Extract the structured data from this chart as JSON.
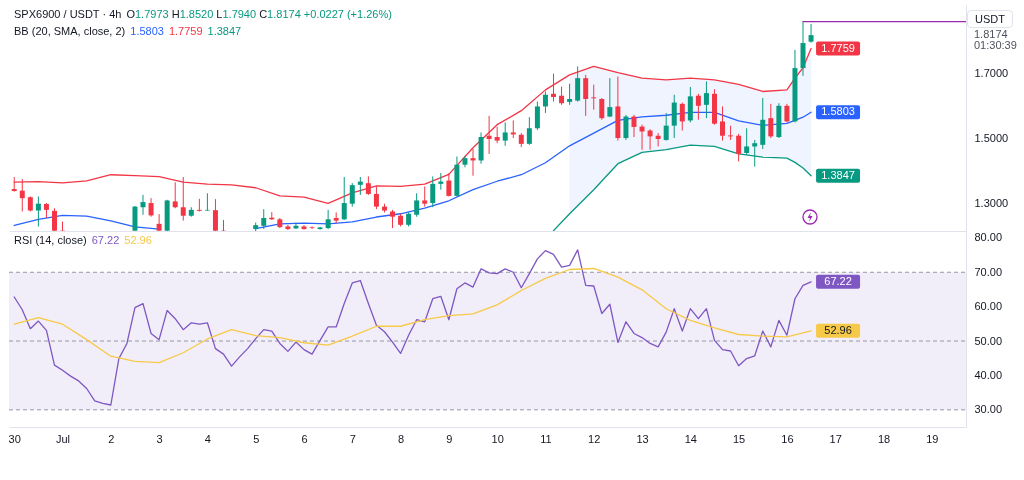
{
  "chart_data": [
    {
      "type": "candlestick",
      "title": "SPX6900 / USDT · 4h",
      "subtitle": "O1.7973 H1.8520 L1.7940 C1.8174 +0.0227 (+1.26%)",
      "legend_title": "BB (20, SMA, close, 2)",
      "ylabel": "USDT",
      "legend": "top left",
      "tick_labels": "y",
      "x": [
        "--06-30T00:00",
        "--06-30T04:00",
        "--06-30T08:00",
        "--06-30T12:00",
        "--06-30T16:00",
        "--06-30T20:00",
        "--07-01T00:00",
        "--07-02T12:00",
        "--07-02T16:00",
        "--07-02T20:00",
        "--07-03T00:00",
        "--07-03T04:00",
        "--07-03T08:00",
        "--07-03T12:00",
        "--07-03T16:00",
        "--07-03T20:00",
        "--07-04T00:00",
        "--07-04T04:00",
        "--07-04T08:00",
        "--07-05T00:00",
        "--07-05T04:00",
        "--07-05T08:00",
        "--07-05T12:00",
        "--07-05T16:00",
        "--07-05T20:00",
        "--07-06T00:00",
        "--07-06T04:00",
        "--07-06T08:00",
        "--07-06T12:00",
        "--07-06T16:00",
        "--07-06T20:00",
        "--07-07T00:00",
        "--07-07T04:00",
        "--07-07T08:00",
        "--07-07T12:00",
        "--07-07T16:00",
        "--07-07T20:00",
        "--07-08T00:00",
        "--07-08T04:00",
        "--07-08T08:00",
        "--07-08T12:00",
        "--07-08T16:00",
        "--07-08T20:00",
        "--07-09T00:00",
        "--07-09T04:00",
        "--07-09T08:00",
        "--07-09T12:00",
        "--07-09T16:00",
        "--07-09T20:00",
        "--07-10T00:00",
        "--07-10T04:00",
        "--07-10T08:00",
        "--07-10T12:00",
        "--07-10T16:00",
        "--07-10T20:00",
        "--07-11T00:00",
        "--07-11T04:00",
        "--07-11T08:00",
        "--07-11T12:00",
        "--07-11T16:00",
        "--07-11T20:00",
        "--07-12T00:00",
        "--07-12T04:00",
        "--07-12T08:00",
        "--07-12T12:00",
        "--07-12T16:00",
        "--07-12T20:00",
        "--07-13T00:00",
        "--07-13T04:00",
        "--07-13T08:00",
        "--07-13T12:00",
        "--07-13T16:00",
        "--07-13T20:00",
        "--07-14T00:00",
        "--07-14T04:00",
        "--07-14T08:00",
        "--07-14T12:00",
        "--07-14T16:00",
        "--07-14T20:00",
        "--07-15T00:00",
        "--07-15T04:00",
        "--07-15T08:00",
        "--07-15T12:00",
        "--07-15T16:00",
        "--07-15T20:00",
        "--07-16T00:00",
        "--07-16T04:00",
        "--07-16T08:00",
        "--07-16T12:00"
      ],
      "ohlc": [
        [
          1.344,
          1.381,
          1.336,
          1.338
        ],
        [
          1.339,
          1.375,
          1.275,
          1.316
        ],
        [
          1.319,
          1.321,
          1.275,
          1.278
        ],
        [
          1.278,
          1.321,
          1.229,
          1.299
        ],
        [
          1.298,
          1.301,
          1.255,
          1.28
        ],
        [
          1.277,
          1.285,
          1.215,
          1.216
        ],
        [
          1.217,
          1.244,
          1.215,
          1.216
        ],
        [
          1.216,
          1.292,
          1.215,
          1.29
        ],
        [
          1.288,
          1.326,
          1.265,
          1.304
        ],
        [
          1.301,
          1.316,
          1.259,
          1.263
        ],
        [
          1.237,
          1.267,
          1.215,
          1.216
        ],
        [
          1.216,
          1.311,
          1.215,
          1.309
        ],
        [
          1.306,
          1.365,
          1.285,
          1.288
        ],
        [
          1.288,
          1.381,
          1.247,
          1.262
        ],
        [
          1.262,
          1.288,
          1.259,
          1.28
        ],
        [
          1.28,
          1.314,
          1.275,
          1.277
        ],
        [
          1.278,
          1.331,
          1.277,
          1.28
        ],
        [
          1.279,
          1.313,
          1.215,
          1.216
        ],
        [
          1.217,
          1.249,
          1.215,
          1.216
        ],
        [
          1.221,
          1.241,
          1.215,
          1.233
        ],
        [
          1.231,
          1.282,
          1.221,
          1.255
        ],
        [
          1.256,
          1.273,
          1.249,
          1.251
        ],
        [
          1.251,
          1.255,
          1.224,
          1.227
        ],
        [
          1.229,
          1.234,
          1.218,
          1.221
        ],
        [
          1.223,
          1.241,
          1.221,
          1.231
        ],
        [
          1.229,
          1.233,
          1.219,
          1.221
        ],
        [
          1.227,
          1.229,
          1.221,
          1.225
        ],
        [
          1.221,
          1.228,
          1.219,
          1.226
        ],
        [
          1.224,
          1.28,
          1.221,
          1.251
        ],
        [
          1.255,
          1.272,
          1.239,
          1.247
        ],
        [
          1.251,
          1.381,
          1.249,
          1.301
        ],
        [
          1.299,
          1.362,
          1.29,
          1.356
        ],
        [
          1.357,
          1.381,
          1.326,
          1.367
        ],
        [
          1.362,
          1.383,
          1.326,
          1.329
        ],
        [
          1.329,
          1.352,
          1.282,
          1.29
        ],
        [
          1.29,
          1.299,
          1.272,
          1.278
        ],
        [
          1.275,
          1.28,
          1.224,
          1.259
        ],
        [
          1.262,
          1.268,
          1.229,
          1.234
        ],
        [
          1.234,
          1.272,
          1.229,
          1.268
        ],
        [
          1.265,
          1.331,
          1.259,
          1.309
        ],
        [
          1.309,
          1.352,
          1.29,
          1.299
        ],
        [
          1.301,
          1.383,
          1.288,
          1.36
        ],
        [
          1.36,
          1.393,
          1.342,
          1.367
        ],
        [
          1.37,
          1.393,
          1.321,
          1.323
        ],
        [
          1.323,
          1.444,
          1.321,
          1.419
        ],
        [
          1.419,
          1.446,
          1.411,
          1.439
        ],
        [
          1.439,
          1.467,
          1.385,
          1.432
        ],
        [
          1.432,
          1.518,
          1.422,
          1.504
        ],
        [
          1.508,
          1.569,
          1.452,
          1.498
        ],
        [
          1.504,
          1.535,
          1.485,
          1.493
        ],
        [
          1.493,
          1.549,
          1.477,
          1.518
        ],
        [
          1.518,
          1.555,
          1.501,
          1.512
        ],
        [
          1.511,
          1.516,
          1.473,
          1.483
        ],
        [
          1.483,
          1.565,
          1.48,
          1.531
        ],
        [
          1.531,
          1.613,
          1.526,
          1.598
        ],
        [
          1.598,
          1.644,
          1.578,
          1.634
        ],
        [
          1.637,
          1.699,
          1.613,
          1.627
        ],
        [
          1.631,
          1.659,
          1.603,
          1.608
        ],
        [
          1.612,
          1.668,
          1.603,
          1.621
        ],
        [
          1.616,
          1.721,
          1.613,
          1.685
        ],
        [
          1.685,
          1.695,
          1.569,
          1.621
        ],
        [
          1.626,
          1.665,
          1.588,
          1.623
        ],
        [
          1.621,
          1.624,
          1.557,
          1.562
        ],
        [
          1.567,
          1.685,
          1.565,
          1.596
        ],
        [
          1.598,
          1.69,
          1.493,
          1.501
        ],
        [
          1.501,
          1.572,
          1.495,
          1.567
        ],
        [
          1.567,
          1.572,
          1.504,
          1.535
        ],
        [
          1.536,
          1.542,
          1.465,
          1.521
        ],
        [
          1.524,
          1.528,
          1.465,
          1.506
        ],
        [
          1.508,
          1.516,
          1.475,
          1.498
        ],
        [
          1.495,
          1.578,
          1.493,
          1.539
        ],
        [
          1.539,
          1.634,
          1.501,
          1.61
        ],
        [
          1.606,
          1.61,
          1.524,
          1.552
        ],
        [
          1.555,
          1.658,
          1.549,
          1.629
        ],
        [
          1.631,
          1.637,
          1.557,
          1.6
        ],
        [
          1.603,
          1.675,
          1.562,
          1.639
        ],
        [
          1.637,
          1.651,
          1.542,
          1.545
        ],
        [
          1.552,
          1.598,
          1.493,
          1.508
        ],
        [
          1.509,
          1.539,
          1.495,
          1.506
        ],
        [
          1.508,
          1.514,
          1.429,
          1.452
        ],
        [
          1.455,
          1.531,
          1.449,
          1.475
        ],
        [
          1.475,
          1.495,
          1.413,
          1.485
        ],
        [
          1.48,
          1.624,
          1.467,
          1.557
        ],
        [
          1.562,
          1.606,
          1.501,
          1.506
        ],
        [
          1.504,
          1.608,
          1.501,
          1.6
        ],
        [
          1.6,
          1.606,
          1.549,
          1.552
        ],
        [
          1.552,
          1.772,
          1.549,
          1.716
        ],
        [
          1.716,
          1.859,
          1.692,
          1.793
        ],
        [
          1.7973,
          1.852,
          1.794,
          1.8174
        ]
      ],
      "series": [
        {
          "type": "line",
          "name": "1.5803",
          "color": "#2962ff",
          "x": [
            "--06-30T00:00",
            "--06-30T12:00",
            "--07-01T00:00",
            "--07-01T12:00",
            "--07-02T00:00",
            "--07-02T12:00",
            "--07-03T00:00",
            "--07-03T12:00",
            "--07-04T00:00",
            "--07-04T12:00",
            "--07-05T00:00",
            "--07-05T12:00",
            "--07-06T00:00",
            "--07-06T12:00",
            "--07-07T00:00",
            "--07-07T12:00",
            "--07-08T00:00",
            "--07-08T12:00",
            "--07-09T00:00",
            "--07-09T12:00",
            "--07-10T00:00",
            "--07-10T12:00",
            "--07-11T00:00",
            "--07-11T12:00",
            "--07-12T00:00",
            "--07-12T12:00",
            "--07-13T00:00",
            "--07-13T12:00",
            "--07-14T00:00",
            "--07-14T12:00",
            "--07-15T00:00",
            "--07-15T12:00",
            "--07-16T00:00",
            "--07-16T04:00",
            "--07-16T08:00",
            "--07-16T12:00"
          ],
          "values": [
            1.232,
            1.251,
            1.263,
            1.261,
            1.246,
            1.228,
            1.221,
            null,
            null,
            null,
            1.222,
            1.237,
            1.239,
            1.237,
            1.243,
            1.258,
            1.268,
            1.285,
            1.308,
            1.342,
            1.368,
            1.388,
            1.425,
            1.477,
            1.516,
            1.555,
            1.566,
            1.571,
            1.58,
            1.58,
            1.554,
            1.54,
            1.546,
            1.555,
            1.565,
            1.5803
          ],
          "upper": [
            null,
            null,
            null,
            null,
            null,
            null,
            null,
            null,
            null,
            null,
            null,
            null,
            null,
            null,
            null,
            null,
            null,
            null,
            null,
            null,
            null,
            null,
            null,
            1.695,
            1.721,
            1.702,
            1.685,
            1.68,
            1.685,
            1.68,
            1.666,
            1.644,
            1.649,
            1.685,
            1.717,
            1.7759
          ],
          "lower": [
            null,
            null,
            null,
            null,
            null,
            null,
            null,
            null,
            null,
            null,
            null,
            null,
            null,
            null,
            null,
            null,
            null,
            null,
            null,
            null,
            null,
            null,
            null,
            1.268,
            1.342,
            1.422,
            1.457,
            1.465,
            1.479,
            1.475,
            1.452,
            1.442,
            1.439,
            1.426,
            1.409,
            1.3847
          ],
          "value_labels": [
            null,
            null,
            null,
            null,
            null,
            null,
            null,
            null,
            null,
            null,
            null,
            null,
            null,
            null,
            null,
            null,
            null,
            null,
            null,
            null,
            null,
            null,
            null,
            null,
            null,
            null,
            null,
            null,
            null,
            null,
            null,
            null,
            null,
            null,
            null,
            "1.5803"
          ]
        },
        {
          "type": "line",
          "name": "1.7759",
          "color": "#f23645",
          "x": [
            "--06-30T00:00",
            "--06-30T12:00",
            "--07-01T00:00",
            "--07-01T12:00",
            "--07-02T00:00",
            "--07-02T12:00",
            "--07-03T00:00",
            "--07-03T12:00",
            "--07-04T00:00",
            "--07-04T12:00",
            "--07-05T00:00",
            "--07-05T12:00",
            "--07-06T00:00",
            "--07-06T12:00",
            "--07-07T00:00",
            "--07-07T12:00",
            "--07-08T00:00",
            "--07-08T12:00",
            "--07-09T00:00",
            "--07-09T12:00",
            "--07-10T00:00",
            "--07-10T12:00",
            "--07-11T00:00",
            "--07-11T12:00",
            "--07-12T00:00",
            "--07-12T12:00",
            "--07-13T00:00",
            "--07-13T12:00",
            "--07-14T00:00",
            "--07-14T12:00",
            "--07-15T00:00",
            "--07-15T12:00",
            "--07-16T00:00",
            "--07-16T04:00",
            "--07-16T08:00",
            "--07-16T12:00"
          ],
          "values": [
            1.365,
            1.367,
            1.363,
            1.369,
            1.388,
            1.385,
            1.382,
            1.365,
            1.359,
            1.357,
            1.348,
            1.323,
            1.319,
            1.3,
            1.332,
            1.354,
            1.352,
            1.359,
            1.389,
            1.471,
            1.542,
            1.585,
            1.649,
            1.695,
            1.721,
            1.702,
            1.685,
            1.68,
            1.685,
            1.68,
            1.666,
            1.644,
            1.649,
            1.685,
            1.717,
            1.7759
          ],
          "value_labels": [
            null,
            null,
            null,
            null,
            null,
            null,
            null,
            null,
            null,
            null,
            null,
            null,
            null,
            null,
            null,
            null,
            null,
            null,
            null,
            null,
            null,
            null,
            null,
            null,
            null,
            null,
            null,
            null,
            null,
            null,
            null,
            null,
            null,
            null,
            null,
            "1.7759"
          ]
        },
        {
          "type": "line",
          "name": "1.3847",
          "color": "#089981",
          "x": [
            "--07-11T04:00",
            "--07-11T12:00",
            "--07-12T00:00",
            "--07-12T12:00",
            "--07-13T00:00",
            "--07-13T12:00",
            "--07-14T00:00",
            "--07-14T12:00",
            "--07-15T00:00",
            "--07-15T12:00",
            "--07-16T00:00",
            "--07-16T04:00",
            "--07-16T08:00",
            "--07-16T12:00"
          ],
          "values": [
            1.216,
            1.268,
            1.342,
            1.422,
            1.457,
            1.465,
            1.479,
            1.475,
            1.452,
            1.442,
            1.439,
            1.426,
            1.409,
            1.3847
          ],
          "value_labels": [
            null,
            null,
            null,
            null,
            null,
            null,
            null,
            null,
            null,
            null,
            null,
            null,
            null,
            "1.3847"
          ]
        },
        {
          "type": "line",
          "color": "#9c27b0",
          "x": [
            "--07-16T08:00",
            "--07-19T17:00"
          ],
          "values": [
            1.859,
            1.859
          ]
        }
      ],
      "xlim": [
        "--06-29T21:24",
        "--07-19T17:00"
      ],
      "ylim": [
        1.215,
        1.91
      ],
      "yticks": [
        {
          "value": 1.3,
          "label": "1.3000"
        },
        {
          "value": 1.5,
          "label": "1.5000"
        },
        {
          "value": 1.7,
          "label": "1.7000"
        }
      ],
      "annotations": [
        "1.8174",
        "01:30:39"
      ]
    },
    {
      "type": "line",
      "legend_title": "RSI (14, close)",
      "legend": "top left",
      "x": [
        "--06-30T00:00",
        "--06-30T04:00",
        "--06-30T08:00",
        "--06-30T12:00",
        "--06-30T16:00",
        "--06-30T20:00",
        "--07-01T00:00",
        "--07-01T04:00",
        "--07-01T08:00",
        "--07-01T12:00",
        "--07-01T16:00",
        "--07-01T20:00",
        "--07-02T00:00",
        "--07-02T04:00",
        "--07-02T08:00",
        "--07-02T12:00",
        "--07-02T16:00",
        "--07-02T20:00",
        "--07-03T00:00",
        "--07-03T04:00",
        "--07-03T08:00",
        "--07-03T12:00",
        "--07-03T16:00",
        "--07-03T20:00",
        "--07-04T00:00",
        "--07-04T04:00",
        "--07-04T08:00",
        "--07-04T12:00",
        "--07-04T16:00",
        "--07-04T20:00",
        "--07-05T00:00",
        "--07-05T04:00",
        "--07-05T08:00",
        "--07-05T12:00",
        "--07-05T16:00",
        "--07-05T20:00",
        "--07-06T00:00",
        "--07-06T04:00",
        "--07-06T08:00",
        "--07-06T12:00",
        "--07-06T16:00",
        "--07-06T20:00",
        "--07-07T00:00",
        "--07-07T04:00",
        "--07-07T08:00",
        "--07-07T12:00",
        "--07-07T16:00",
        "--07-07T20:00",
        "--07-08T00:00",
        "--07-08T04:00",
        "--07-08T08:00",
        "--07-08T12:00",
        "--07-08T16:00",
        "--07-08T20:00",
        "--07-09T00:00",
        "--07-09T04:00",
        "--07-09T08:00",
        "--07-09T12:00",
        "--07-09T16:00",
        "--07-09T20:00",
        "--07-10T00:00",
        "--07-10T04:00",
        "--07-10T08:00",
        "--07-10T12:00",
        "--07-10T16:00",
        "--07-10T20:00",
        "--07-11T00:00",
        "--07-11T04:00",
        "--07-11T08:00",
        "--07-11T12:00",
        "--07-11T16:00",
        "--07-11T20:00",
        "--07-12T00:00",
        "--07-12T04:00",
        "--07-12T08:00",
        "--07-12T12:00",
        "--07-12T16:00",
        "--07-12T20:00",
        "--07-13T00:00",
        "--07-13T04:00",
        "--07-13T08:00",
        "--07-13T12:00",
        "--07-13T16:00",
        "--07-13T20:00",
        "--07-14T00:00",
        "--07-14T04:00",
        "--07-14T08:00",
        "--07-14T12:00",
        "--07-14T16:00",
        "--07-14T20:00",
        "--07-15T00:00",
        "--07-15T04:00",
        "--07-15T08:00",
        "--07-15T12:00",
        "--07-15T16:00",
        "--07-15T20:00",
        "--07-16T00:00",
        "--07-16T04:00",
        "--07-16T08:00",
        "--07-16T12:00"
      ],
      "series": [
        {
          "name": "67.22",
          "color": "#7e57c2",
          "values": [
            62.8,
            59.1,
            53.6,
            55.8,
            53.1,
            43.0,
            41.5,
            39.8,
            38.4,
            36.2,
            32.6,
            31.9,
            31.4,
            44.9,
            49.3,
            59.7,
            60.9,
            52.2,
            50.4,
            58.9,
            56.5,
            53.3,
            55.3,
            54.9,
            55.3,
            47.8,
            46.2,
            42.7,
            45.4,
            47.8,
            50.7,
            53.3,
            52.9,
            49.3,
            47.0,
            49.7,
            47.5,
            46.2,
            50.2,
            54.1,
            54.1,
            60.9,
            66.9,
            67.6,
            60.9,
            54.6,
            52.7,
            49.7,
            46.4,
            51.7,
            56.2,
            55.6,
            62.3,
            63.0,
            56.2,
            65.2,
            66.9,
            65.7,
            71.0,
            69.8,
            69.6,
            71.0,
            70.0,
            65.5,
            69.6,
            73.9,
            76.3,
            75.2,
            71.5,
            72.0,
            76.5,
            66.2,
            66.0,
            58.0,
            60.7,
            49.6,
            55.6,
            52.2,
            51.0,
            49.3,
            48.3,
            52.6,
            59.4,
            52.9,
            59.4,
            56.5,
            59.4,
            50.2,
            47.5,
            47.1,
            42.8,
            44.9,
            45.7,
            52.9,
            48.3,
            56.0,
            51.7,
            62.3,
            66.2,
            67.22
          ],
          "value_labels": [
            null,
            null,
            null,
            null,
            null,
            null,
            null,
            null,
            null,
            null,
            null,
            null,
            null,
            null,
            null,
            null,
            null,
            null,
            null,
            null,
            null,
            null,
            null,
            null,
            null,
            null,
            null,
            null,
            null,
            null,
            null,
            null,
            null,
            null,
            null,
            null,
            null,
            null,
            null,
            null,
            null,
            null,
            null,
            null,
            null,
            null,
            null,
            null,
            null,
            null,
            null,
            null,
            null,
            null,
            null,
            null,
            null,
            null,
            null,
            null,
            null,
            null,
            null,
            null,
            null,
            null,
            null,
            null,
            null,
            null,
            null,
            null,
            null,
            null,
            null,
            null,
            null,
            null,
            null,
            null,
            null,
            null,
            null,
            null,
            null,
            null,
            null,
            null,
            null,
            null,
            null,
            null,
            null,
            null,
            null,
            null,
            null,
            null,
            null,
            "67.22"
          ]
        },
        {
          "name": "52.96",
          "color": "#f7c948",
          "x": [
            "--06-30T00:00",
            "--06-30T12:00",
            "--07-01T00:00",
            "--07-01T12:00",
            "--07-02T00:00",
            "--07-02T12:00",
            "--07-03T00:00",
            "--07-03T12:00",
            "--07-04T00:00",
            "--07-04T12:00",
            "--07-05T00:00",
            "--07-05T12:00",
            "--07-06T00:00",
            "--07-06T12:00",
            "--07-07T00:00",
            "--07-07T12:00",
            "--07-08T00:00",
            "--07-08T12:00",
            "--07-09T00:00",
            "--07-09T12:00",
            "--07-10T00:00",
            "--07-10T12:00",
            "--07-11T00:00",
            "--07-11T12:00",
            "--07-12T00:00",
            "--07-12T12:00",
            "--07-13T00:00",
            "--07-13T12:00",
            "--07-14T00:00",
            "--07-14T12:00",
            "--07-15T00:00",
            "--07-15T12:00",
            "--07-16T00:00",
            "--07-16T12:00"
          ],
          "values": [
            54.9,
            56.8,
            54.9,
            50.4,
            45.6,
            44.1,
            43.7,
            46.6,
            50.6,
            53.3,
            51.6,
            51.0,
            49.5,
            48.8,
            51.4,
            54.3,
            54.3,
            56.2,
            57.4,
            57.9,
            60.5,
            64.7,
            68.2,
            70.8,
            71.1,
            68.6,
            64.9,
            59.4,
            56.0,
            53.8,
            51.9,
            51.4,
            51.2,
            52.96
          ],
          "value_labels": [
            null,
            null,
            null,
            null,
            null,
            null,
            null,
            null,
            null,
            null,
            null,
            null,
            null,
            null,
            null,
            null,
            null,
            null,
            null,
            null,
            null,
            null,
            null,
            null,
            null,
            null,
            null,
            null,
            null,
            null,
            null,
            null,
            null,
            "52.96"
          ]
        }
      ],
      "xlim": [
        "--06-29T21:24",
        "--07-19T17:00"
      ],
      "ylim": [
        25,
        82
      ],
      "xticks": [
        {
          "value": "--06-30",
          "label": "30"
        },
        {
          "value": "--07-01",
          "label": "Jul"
        },
        {
          "value": "--07-02",
          "label": "2"
        },
        {
          "value": "--07-03",
          "label": "3"
        },
        {
          "value": "--07-04",
          "label": "4"
        },
        {
          "value": "--07-05",
          "label": "5"
        },
        {
          "value": "--07-06",
          "label": "6"
        },
        {
          "value": "--07-07",
          "label": "7"
        },
        {
          "value": "--07-08",
          "label": "8"
        },
        {
          "value": "--07-09",
          "label": "9"
        },
        {
          "value": "--07-10",
          "label": "10"
        },
        {
          "value": "--07-11",
          "label": "11"
        },
        {
          "value": "--07-12",
          "label": "12"
        },
        {
          "value": "--07-13",
          "label": "13"
        },
        {
          "value": "--07-14",
          "label": "14"
        },
        {
          "value": "--07-15",
          "label": "15"
        },
        {
          "value": "--07-16",
          "label": "16"
        },
        {
          "value": "--07-17",
          "label": "17"
        },
        {
          "value": "--07-18",
          "label": "18"
        },
        {
          "value": "--07-19",
          "label": "19"
        }
      ],
      "yticks": [
        {
          "value": 30,
          "label": "30.00"
        },
        {
          "value": 40,
          "label": "40.00"
        },
        {
          "value": 50,
          "label": "50.00"
        },
        {
          "value": 60,
          "label": "60.00"
        },
        {
          "value": 70,
          "label": "70.00"
        },
        {
          "value": 80,
          "label": "80.00"
        }
      ],
      "ref_lines": [
        {
          "axis": "y",
          "value": 70,
          "color": "#9598a1",
          "line_style": "dashed"
        },
        {
          "axis": "y",
          "value": 50,
          "color": "#9598a1",
          "line_style": "dashed"
        },
        {
          "axis": "y",
          "value": 30,
          "color": "#9598a1",
          "line_style": "dashed"
        }
      ],
      "bands": [
        {
          "axis": "y",
          "from": 30,
          "to": 70,
          "color": "#f2eef9"
        }
      ]
    }
  ]
}
